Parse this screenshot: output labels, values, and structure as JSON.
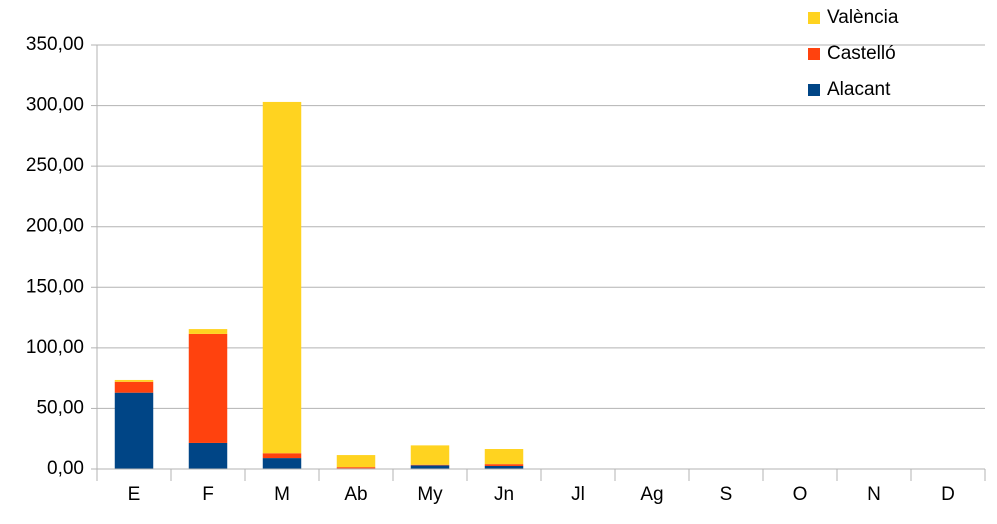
{
  "chart_data": {
    "type": "stacked_bar",
    "categories": [
      "E",
      "F",
      "M",
      "Ab",
      "My",
      "Jn",
      "Jl",
      "Ag",
      "S",
      "O",
      "N",
      "D"
    ],
    "series": [
      {
        "name": "Alacant",
        "color": "#004586",
        "values": [
          63,
          21.5,
          9,
          0.5,
          3,
          2.5,
          0,
          0,
          0,
          0,
          0,
          0
        ]
      },
      {
        "name": "Castelló",
        "color": "#ff420e",
        "values": [
          9,
          90,
          4,
          1,
          0.5,
          1.5,
          0,
          0,
          0,
          0,
          0,
          0
        ]
      },
      {
        "name": "València",
        "color": "#ffd320",
        "values": [
          1.5,
          4,
          290,
          10,
          16,
          12.5,
          0,
          0,
          0,
          0,
          0,
          0
        ]
      }
    ],
    "ylim": [
      0,
      350
    ],
    "yticks": [
      {
        "value": 0,
        "label": "0,00"
      },
      {
        "value": 50,
        "label": "50,00"
      },
      {
        "value": 100,
        "label": "100,00"
      },
      {
        "value": 150,
        "label": "150,00"
      },
      {
        "value": 200,
        "label": "200,00"
      },
      {
        "value": 250,
        "label": "250,00"
      },
      {
        "value": 300,
        "label": "300,00"
      },
      {
        "value": 350,
        "label": "350,00"
      }
    ],
    "grid": true,
    "legend": "top-right"
  }
}
